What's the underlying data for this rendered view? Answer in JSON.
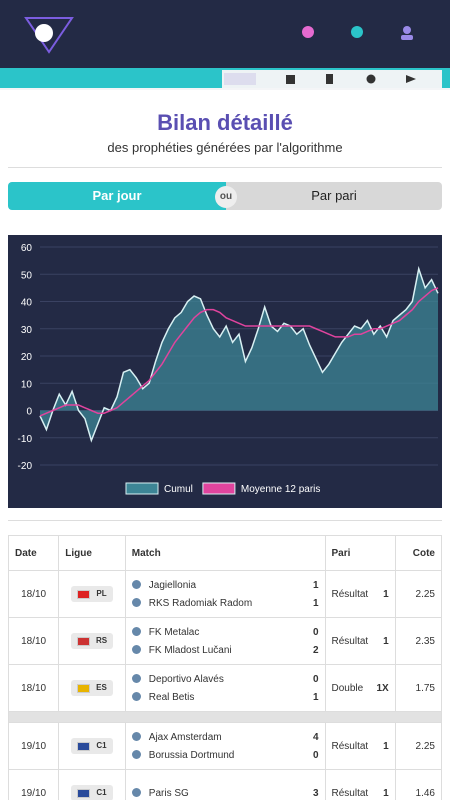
{
  "header": {
    "title": "Bilan détaillé",
    "subtitle": "des prophéties générées par l'algorithme"
  },
  "toggle": {
    "left": "Par jour",
    "middle": "ou",
    "right": "Par pari"
  },
  "chart_data": {
    "type": "area",
    "ylim": [
      -20,
      60
    ],
    "yticks": [
      -20,
      -10,
      0,
      10,
      20,
      30,
      40,
      50,
      60
    ],
    "grid": true,
    "legend": "bottom",
    "series": [
      {
        "name": "Cumul",
        "color": "#3d8596",
        "values": [
          -2,
          -7,
          0,
          6,
          2,
          7,
          0,
          -3,
          -11,
          -5,
          1,
          0,
          5,
          14,
          15,
          12,
          8,
          10,
          18,
          25,
          30,
          34,
          36,
          40,
          42,
          41,
          35,
          30,
          27,
          31,
          25,
          28,
          18,
          23,
          30,
          38,
          31,
          29,
          32,
          31,
          28,
          30,
          24,
          19,
          14,
          17,
          21,
          25,
          28,
          31,
          30,
          33,
          28,
          31,
          27,
          33,
          35,
          37,
          40,
          52,
          45,
          48,
          43
        ]
      },
      {
        "name": "Moyenne 12 paris",
        "color": "#e0449e",
        "values": [
          -2,
          -1,
          0,
          1,
          2,
          2,
          2,
          1,
          0,
          -1,
          -1,
          0,
          1,
          3,
          5,
          7,
          9,
          11,
          14,
          17,
          21,
          25,
          28,
          31,
          34,
          36,
          37,
          37,
          36,
          34,
          33,
          32,
          31,
          31,
          31,
          31,
          31,
          31,
          31,
          31,
          31,
          31,
          31,
          30,
          29,
          28,
          27,
          27,
          27,
          28,
          28,
          29,
          30,
          30,
          31,
          32,
          33,
          35,
          37,
          40,
          42,
          44,
          45
        ]
      }
    ]
  },
  "table": {
    "headers": [
      "Date",
      "Ligue",
      "Match",
      "Pari",
      "Cote"
    ],
    "rows": [
      {
        "date": "18/10",
        "league": "PL",
        "home": "Jagiellonia",
        "home_score": 1,
        "away": "RKS Radomiak Radom",
        "away_score": 1,
        "bet_type": "Résultat",
        "bet": "1",
        "odds": 2.25
      },
      {
        "date": "18/10",
        "league": "RS",
        "home": "FK Metalac",
        "home_score": 0,
        "away": "FK Mladost Lučani",
        "away_score": 2,
        "bet_type": "Résultat",
        "bet": "1",
        "odds": 2.35
      },
      {
        "date": "18/10",
        "league": "ES",
        "home": "Deportivo Alavés",
        "home_score": 0,
        "away": "Real Betis",
        "away_score": 1,
        "bet_type": "Double",
        "bet": "1X",
        "odds": 1.75
      },
      {
        "date": "19/10",
        "league": "C1",
        "home": "Ajax Amsterdam",
        "home_score": 4,
        "away": "Borussia Dortmund",
        "away_score": 0,
        "bet_type": "Résultat",
        "bet": "1",
        "odds": 2.25
      },
      {
        "date": "19/10",
        "league": "C1",
        "home": "Paris SG",
        "home_score": 3,
        "bet_type": "Résultat",
        "bet": "1",
        "odds": 1.46
      }
    ]
  }
}
